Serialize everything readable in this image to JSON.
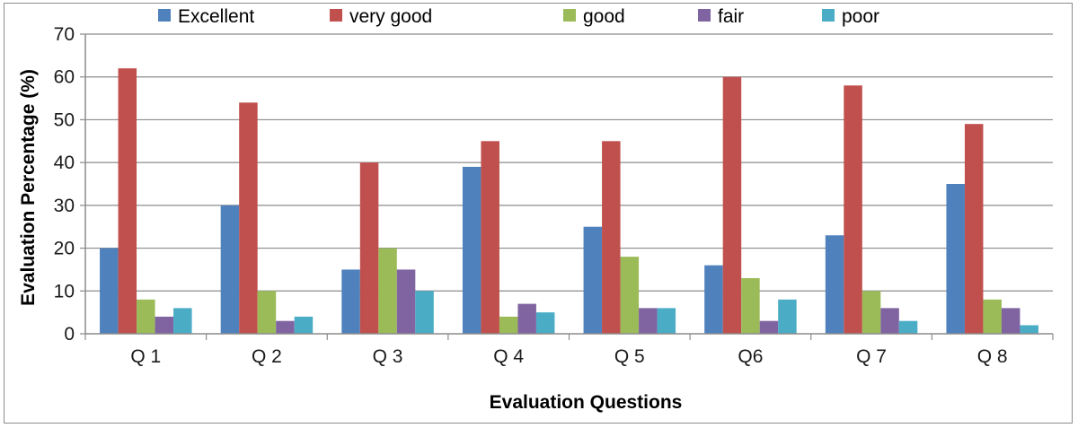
{
  "chart_data": {
    "type": "bar",
    "title": "",
    "xlabel": "Evaluation Questions",
    "ylabel": "Evaluation Percentage (%)",
    "ylim": [
      0,
      70
    ],
    "yticks": [
      0,
      10,
      20,
      30,
      40,
      50,
      60,
      70
    ],
    "grid": "horizontal",
    "legend_position": "top",
    "categories": [
      "Q 1",
      "Q 2",
      "Q 3",
      "Q 4",
      "Q 5",
      "Q6",
      "Q 7",
      "Q 8"
    ],
    "series": [
      {
        "name": "Excellent",
        "color": "#4f81bd",
        "values": [
          20,
          30,
          15,
          39,
          25,
          16,
          23,
          35
        ]
      },
      {
        "name": "very good",
        "color": "#c0504d",
        "values": [
          62,
          54,
          40,
          45,
          45,
          60,
          58,
          49
        ]
      },
      {
        "name": "good",
        "color": "#9bbb59",
        "values": [
          8,
          10,
          20,
          4,
          18,
          13,
          10,
          8
        ]
      },
      {
        "name": "fair",
        "color": "#8064a2",
        "values": [
          4,
          3,
          15,
          7,
          6,
          3,
          6,
          6
        ]
      },
      {
        "name": "poor",
        "color": "#4bacc6",
        "values": [
          6,
          4,
          10,
          5,
          6,
          8,
          3,
          2
        ]
      }
    ]
  }
}
